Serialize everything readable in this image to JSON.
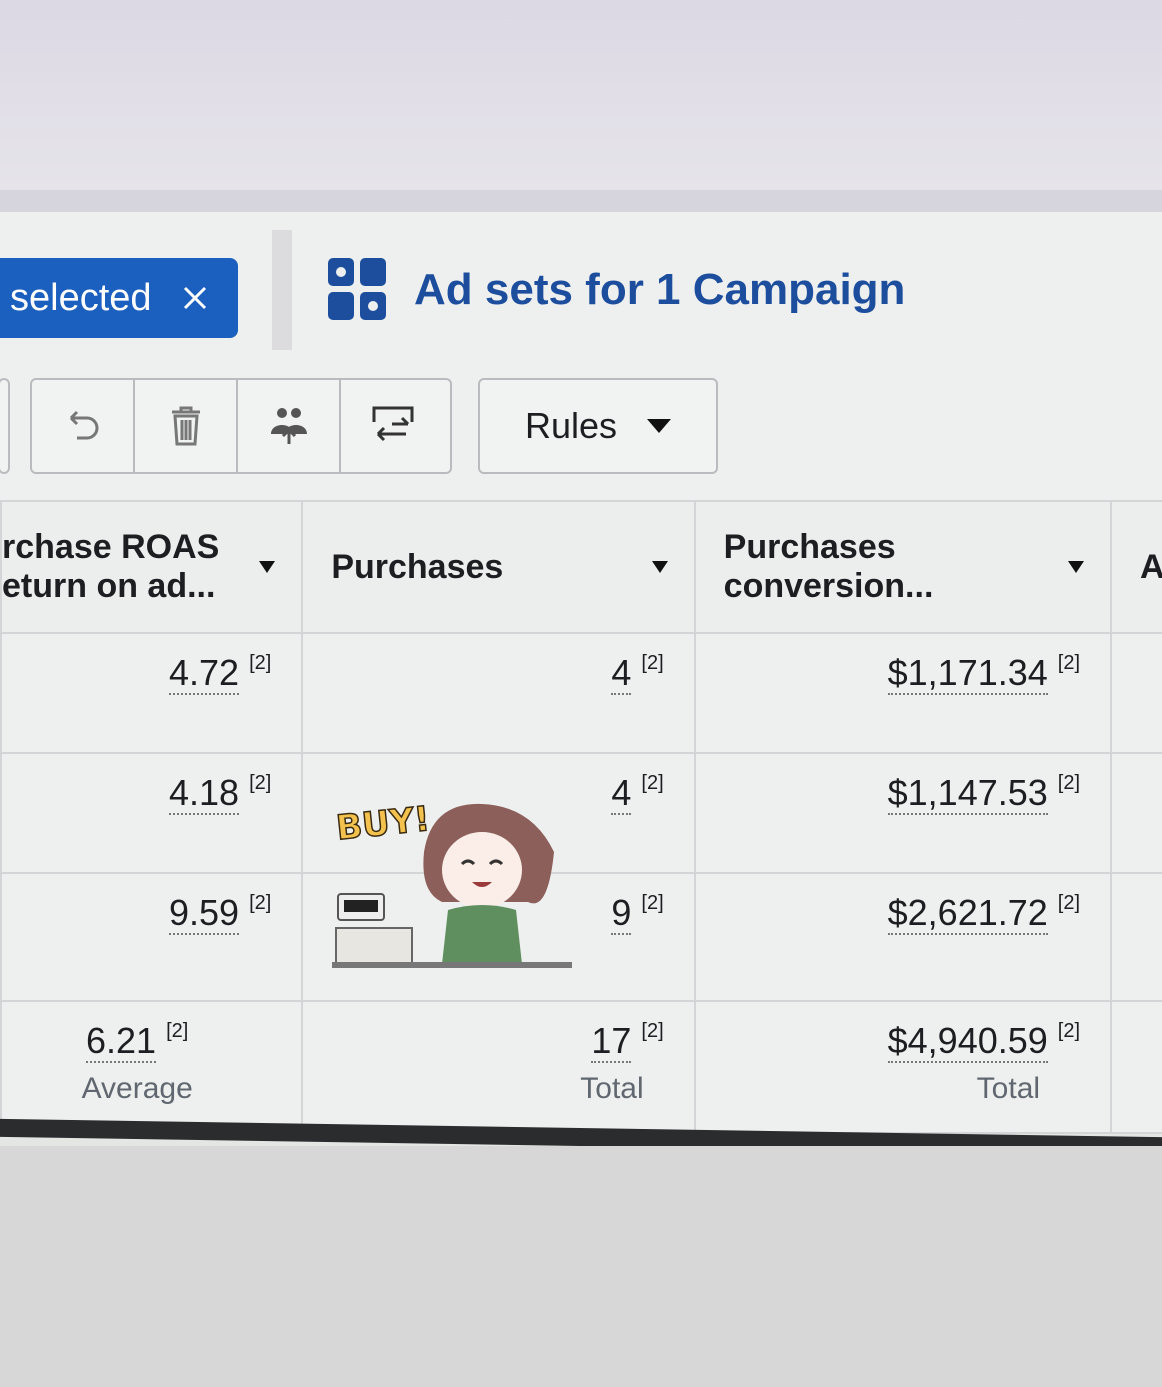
{
  "header": {
    "selected_chip": {
      "label": "selected",
      "close_icon": "close-icon"
    },
    "title": "Ad sets for 1 Campaign",
    "title_icon": "grid-icon",
    "accent_color": "#1b5fbf"
  },
  "toolbar": {
    "buttons": [
      {
        "icon": "undo-icon"
      },
      {
        "icon": "trash-icon"
      },
      {
        "icon": "audience-icon"
      },
      {
        "icon": "ab-test-icon"
      }
    ],
    "rules_label": "Rules"
  },
  "table": {
    "columns": [
      {
        "line1": "rchase ROAS",
        "line2": "eturn on ad..."
      },
      {
        "line1": "Purchases",
        "line2": ""
      },
      {
        "line1": "Purchases",
        "line2": "conversion..."
      },
      {
        "line1": "A",
        "line2": ""
      }
    ],
    "rows": [
      {
        "roas": "4.72",
        "purchases": "4",
        "value": "$1,171.34"
      },
      {
        "roas": "4.18",
        "purchases": "4",
        "value": "$1,147.53"
      },
      {
        "roas": "9.59",
        "purchases": "9",
        "value": "$2,621.72"
      }
    ],
    "footnote": "[2]",
    "summary": {
      "roas": "6.21",
      "roas_label": "Average",
      "purchases": "17",
      "purchases_label": "Total",
      "value": "$4,940.59",
      "value_label": "Total"
    }
  },
  "sticker": {
    "text": "BUY!"
  }
}
